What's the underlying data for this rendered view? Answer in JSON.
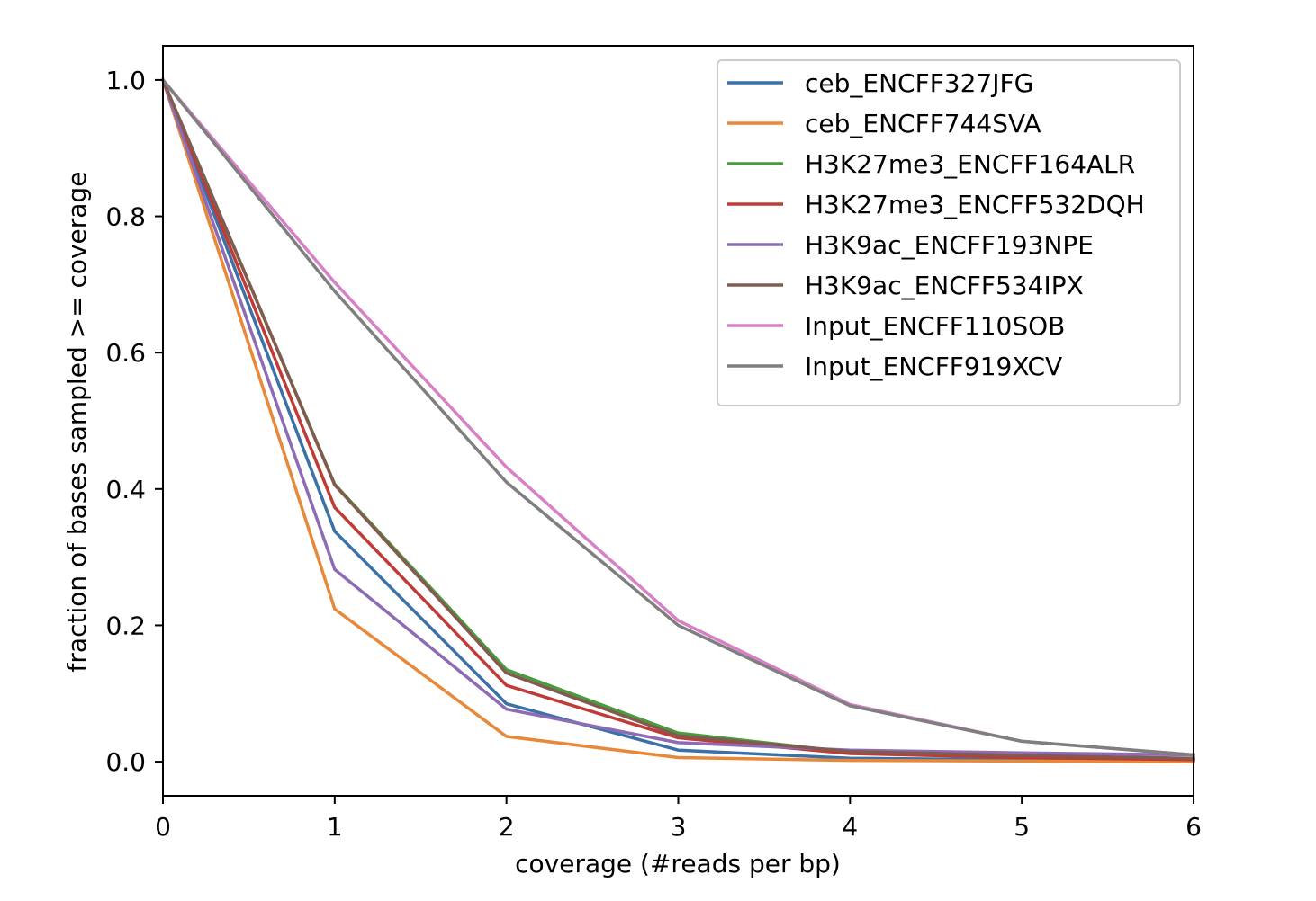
{
  "chart_data": {
    "type": "line",
    "title": "",
    "xlabel": "coverage (#reads per bp)",
    "ylabel": "fraction of bases sampled >= coverage",
    "xlim": [
      0,
      6
    ],
    "ylim": [
      -0.05,
      1.05
    ],
    "xticks": [
      0,
      1,
      2,
      3,
      4,
      5,
      6
    ],
    "xtick_labels": [
      "0",
      "1",
      "2",
      "3",
      "4",
      "5",
      "6"
    ],
    "yticks": [
      0.0,
      0.2,
      0.4,
      0.6,
      0.8,
      1.0
    ],
    "ytick_labels": [
      "0.0",
      "0.2",
      "0.4",
      "0.6",
      "0.8",
      "1.0"
    ],
    "grid": false,
    "legend_position": "top-right",
    "x": [
      0,
      1,
      2,
      3,
      4,
      5,
      6
    ],
    "series": [
      {
        "name": "ceb_ENCFF327JFG",
        "color": "#3a72a8",
        "values": [
          1.0,
          0.338,
          0.085,
          0.017,
          0.005,
          0.003,
          0.002
        ]
      },
      {
        "name": "ceb_ENCFF744SVA",
        "color": "#e8893a",
        "values": [
          1.0,
          0.224,
          0.037,
          0.006,
          0.002,
          0.001,
          0.0
        ]
      },
      {
        "name": "H3K27me3_ENCFF164ALR",
        "color": "#4a9a3e",
        "values": [
          1.0,
          0.407,
          0.135,
          0.042,
          0.014,
          0.007,
          0.004
        ]
      },
      {
        "name": "H3K27me3_ENCFF532DQH",
        "color": "#c03b36",
        "values": [
          1.0,
          0.373,
          0.112,
          0.035,
          0.012,
          0.006,
          0.003
        ]
      },
      {
        "name": "H3K9ac_ENCFF193NPE",
        "color": "#8d6bb5",
        "values": [
          1.0,
          0.282,
          0.077,
          0.028,
          0.017,
          0.013,
          0.01
        ]
      },
      {
        "name": "H3K9ac_ENCFF534IPX",
        "color": "#825a4f",
        "values": [
          1.0,
          0.406,
          0.13,
          0.038,
          0.015,
          0.009,
          0.005
        ]
      },
      {
        "name": "Input_ENCFF110SOB",
        "color": "#d880c6",
        "values": [
          1.0,
          0.703,
          0.432,
          0.207,
          0.084,
          0.03,
          0.01
        ]
      },
      {
        "name": "Input_ENCFF919XCV",
        "color": "#7f7f7f",
        "values": [
          1.0,
          0.69,
          0.41,
          0.2,
          0.082,
          0.03,
          0.01
        ]
      }
    ]
  }
}
